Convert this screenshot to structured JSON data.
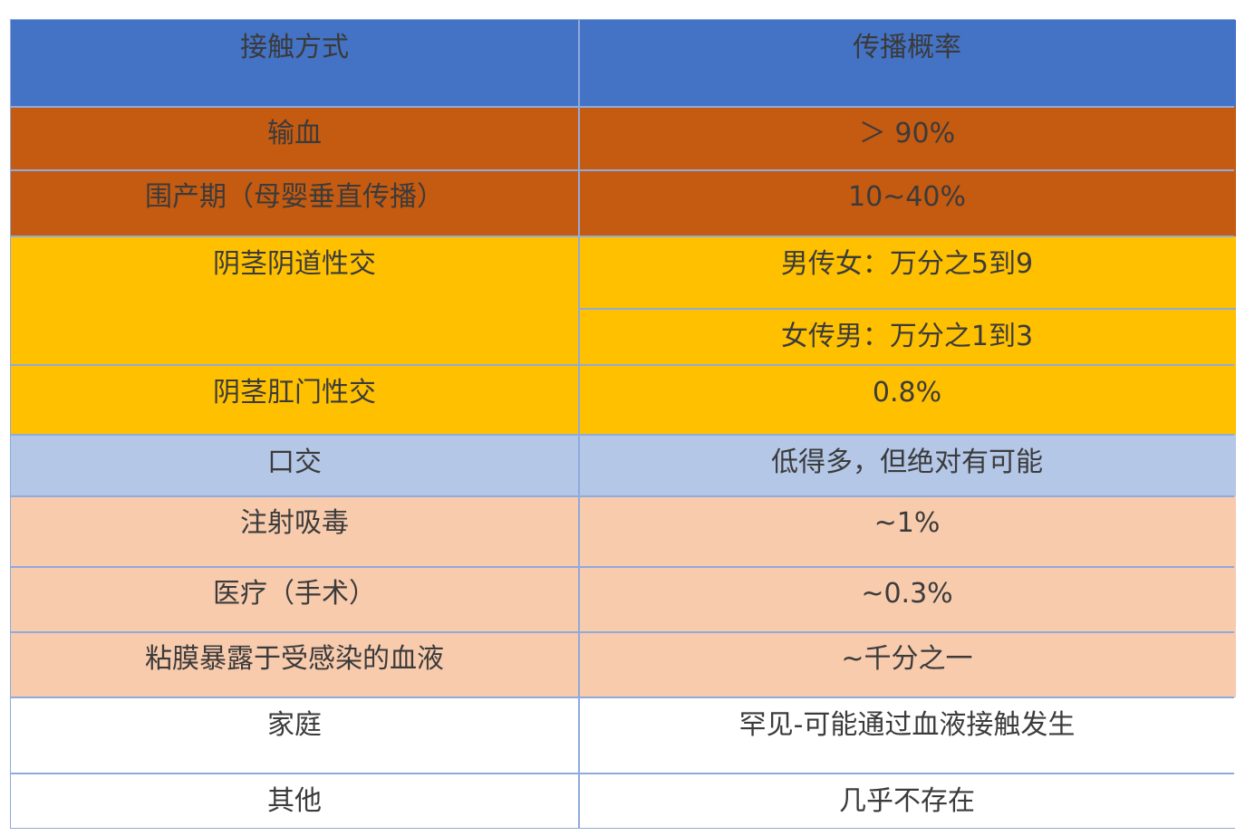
{
  "header": {
    "method": "接触方式",
    "probability": "传播概率"
  },
  "rows": {
    "r1": {
      "method": "输血",
      "probability": "＞ 90%"
    },
    "r2": {
      "method": "围产期（母婴垂直传播）",
      "probability": "10~40%"
    },
    "r3": {
      "method": "阴茎阴道性交",
      "probability_a": "男传女：万分之5到9",
      "probability_b": "女传男：万分之1到3"
    },
    "r4": {
      "method": "阴茎肛门性交",
      "probability": "0.8%"
    },
    "r5": {
      "method": "口交",
      "probability": "低得多，但绝对有可能"
    },
    "r6": {
      "method": "注射吸毒",
      "probability": "~1%"
    },
    "r7": {
      "method": "医疗（手术）",
      "probability": "~0.3%"
    },
    "r8": {
      "method": "粘膜暴露于受感染的血液",
      "probability": "~千分之一"
    },
    "r9": {
      "method": "家庭",
      "probability": "罕见-可能通过血液接触发生"
    },
    "r10": {
      "method": "其他",
      "probability": "几乎不存在"
    }
  },
  "colors": {
    "header": "#4472c4",
    "high": "#c55a11",
    "sexual": "#ffc000",
    "oral": "#b4c7e7",
    "blood": "#f8cbad",
    "other": "#ffffff",
    "border": "#8faadc"
  }
}
